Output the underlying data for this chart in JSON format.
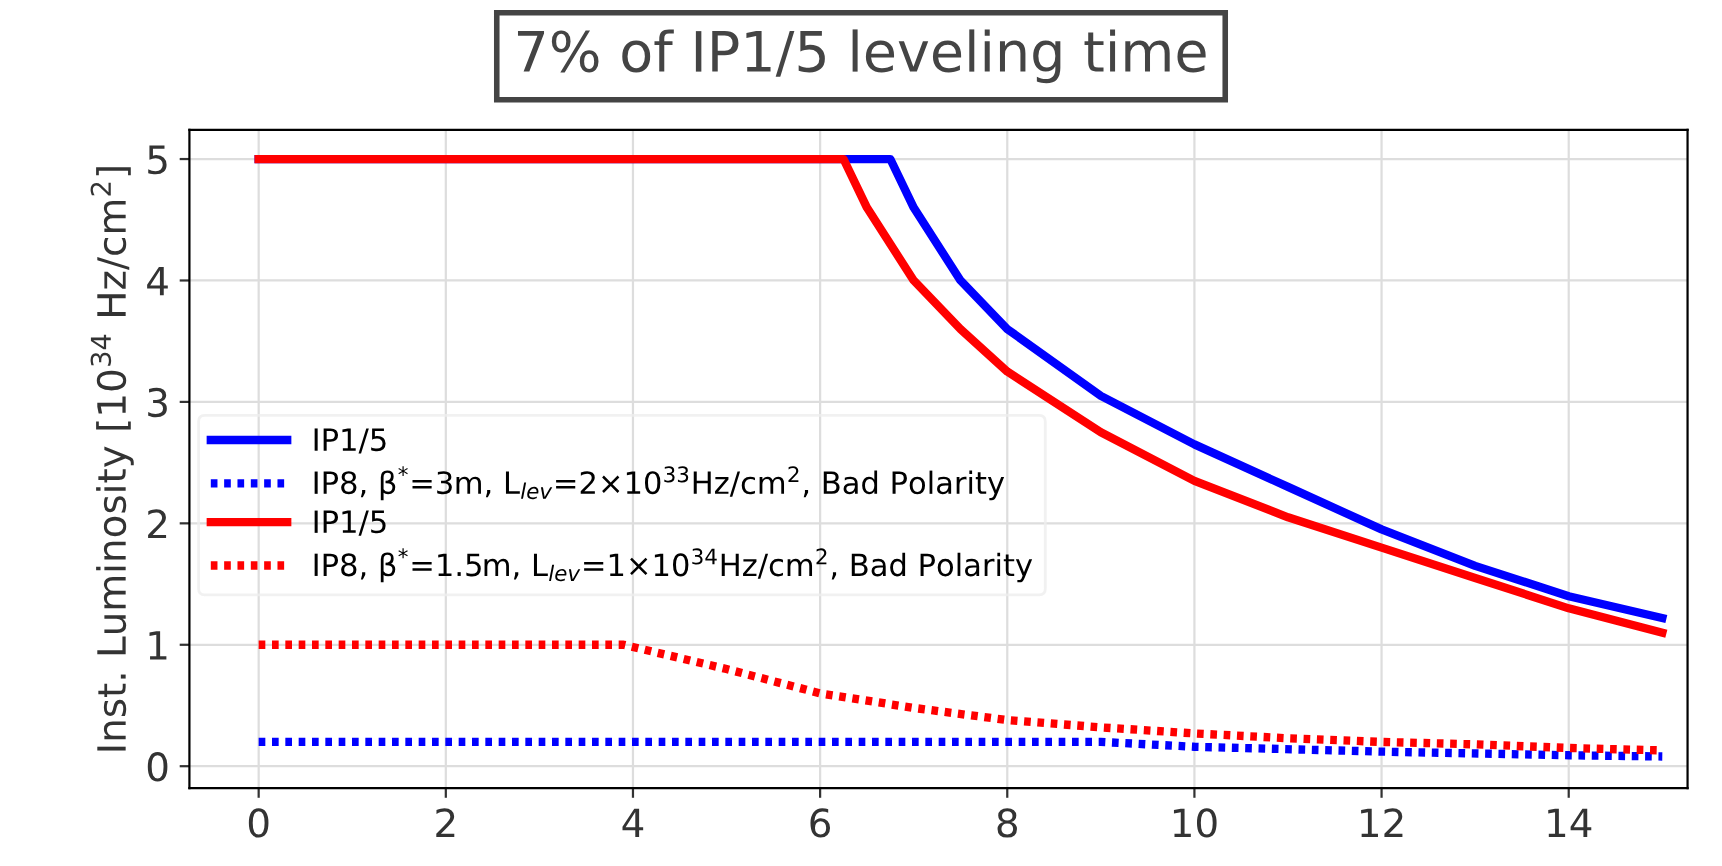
{
  "chart_data": {
    "type": "line",
    "annotations": [
      "7% of IP1/5 leveling time"
    ],
    "ylabel": "Inst. Luminosity [10$^{34}$ Hz/cm$^{2}$]",
    "xlim": [
      -0.74,
      15.27
    ],
    "ylim": [
      -0.18,
      5.24
    ],
    "xticks": [
      0,
      2,
      4,
      6,
      8,
      10,
      12,
      14
    ],
    "yticks": [
      0,
      1,
      2,
      3,
      4,
      5
    ],
    "grid": true,
    "legend": "center left",
    "marker": "none",
    "series": [
      {
        "name": "IP1/5",
        "color": "#0000ff",
        "line_style": "solid",
        "x": [
          0,
          6.75,
          7,
          7.5,
          8,
          9,
          10,
          11,
          12,
          13,
          14,
          15
        ],
        "values": [
          5,
          5,
          4.6,
          4.0,
          3.6,
          3.05,
          2.65,
          2.3,
          1.95,
          1.65,
          1.4,
          1.22
        ]
      },
      {
        "name": "IP8, β$^{*}$=3m, L$_{lev}$=2×10$^{33}$Hz/cm$^{2}$, Bad Polarity",
        "color": "#0000ff",
        "line_style": "dotted",
        "x": [
          0,
          9,
          10,
          12,
          14,
          15
        ],
        "values": [
          0.2,
          0.2,
          0.16,
          0.12,
          0.09,
          0.08
        ]
      },
      {
        "name": "IP1/5",
        "color": "#ff0000",
        "line_style": "solid",
        "x": [
          0,
          6.25,
          6.5,
          7,
          7.5,
          8,
          9,
          10,
          11,
          12,
          13,
          14,
          15
        ],
        "values": [
          5,
          5,
          4.6,
          4.0,
          3.6,
          3.25,
          2.75,
          2.35,
          2.05,
          1.8,
          1.55,
          1.3,
          1.1
        ]
      },
      {
        "name": "IP8, β$^{*}$=1.5m, L$_{lev}$=1×10$^{34}$Hz/cm$^{2}$, Bad Polarity",
        "color": "#ff0000",
        "line_style": "dotted",
        "x": [
          0,
          3.9,
          5,
          6,
          7,
          8,
          9,
          10,
          11,
          12,
          13,
          14,
          15
        ],
        "values": [
          1,
          1,
          0.8,
          0.6,
          0.48,
          0.38,
          0.32,
          0.27,
          0.23,
          0.2,
          0.18,
          0.15,
          0.13
        ]
      }
    ]
  }
}
